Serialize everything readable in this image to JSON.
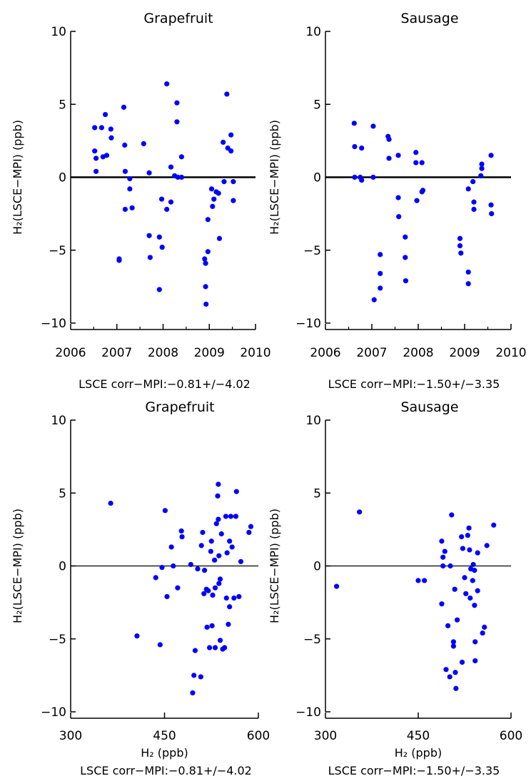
{
  "chart_data": [
    {
      "type": "scatter",
      "title": "Grapefruit",
      "xlabel": "",
      "ylabel": "H₂(LSCE−MPI) (ppb)",
      "xlim": [
        2006,
        2010
      ],
      "ylim": [
        -10,
        10
      ],
      "xticks": [
        2006,
        2007,
        2008,
        2009,
        2010
      ],
      "xtick_labels": [
        "2006",
        "2007",
        "2008",
        "2009",
        "2010"
      ],
      "yticks": [
        -10,
        -5,
        0,
        5,
        10
      ],
      "ytick_labels": [
        "−10",
        "−5",
        "0",
        "5",
        "10"
      ],
      "footer": "LSCE corr−MPI:−0.81+/−4.02",
      "color": "#0000ff",
      "reference_line": 0,
      "points": [
        [
          2006.52,
          3.4
        ],
        [
          2006.52,
          1.8
        ],
        [
          2006.55,
          1.3
        ],
        [
          2006.55,
          0.4
        ],
        [
          2006.67,
          3.4
        ],
        [
          2006.7,
          1.4
        ],
        [
          2006.75,
          4.3
        ],
        [
          2006.78,
          1.5
        ],
        [
          2006.87,
          3.3
        ],
        [
          2006.88,
          2.7
        ],
        [
          2007.05,
          -5.6
        ],
        [
          2007.05,
          -5.7
        ],
        [
          2007.15,
          4.8
        ],
        [
          2007.17,
          2.2
        ],
        [
          2007.18,
          0.4
        ],
        [
          2007.18,
          -2.2
        ],
        [
          2007.28,
          -0.8
        ],
        [
          2007.28,
          -0.1
        ],
        [
          2007.33,
          -2.1
        ],
        [
          2007.58,
          2.3
        ],
        [
          2007.7,
          0.3
        ],
        [
          2007.7,
          -4.0
        ],
        [
          2007.72,
          -5.5
        ],
        [
          2007.92,
          -4.1
        ],
        [
          2007.92,
          -7.7
        ],
        [
          2007.97,
          -1.5
        ],
        [
          2007.98,
          -4.8
        ],
        [
          2008.08,
          6.4
        ],
        [
          2008.08,
          -2.2
        ],
        [
          2008.17,
          0.7
        ],
        [
          2008.17,
          -1.7
        ],
        [
          2008.25,
          0.1
        ],
        [
          2008.3,
          5.1
        ],
        [
          2008.3,
          3.8
        ],
        [
          2008.32,
          0.0
        ],
        [
          2008.4,
          1.4
        ],
        [
          2008.4,
          0.0
        ],
        [
          2008.9,
          -5.6
        ],
        [
          2008.92,
          -5.9
        ],
        [
          2008.92,
          -7.5
        ],
        [
          2008.93,
          -8.7
        ],
        [
          2008.97,
          -5.1
        ],
        [
          2008.97,
          -2.9
        ],
        [
          2009.05,
          -0.8
        ],
        [
          2009.07,
          -2.0
        ],
        [
          2009.1,
          -1.5
        ],
        [
          2009.15,
          -1.0
        ],
        [
          2009.2,
          -1.1
        ],
        [
          2009.22,
          -4.2
        ],
        [
          2009.3,
          2.4
        ],
        [
          2009.32,
          -0.3
        ],
        [
          2009.38,
          5.7
        ],
        [
          2009.4,
          2.0
        ],
        [
          2009.47,
          2.9
        ],
        [
          2009.47,
          1.8
        ],
        [
          2009.52,
          -1.6
        ],
        [
          2009.52,
          -0.3
        ]
      ]
    },
    {
      "type": "scatter",
      "title": "Sausage",
      "xlabel": "",
      "ylabel": "H₂(LSCE−MPI) (ppb)",
      "xlim": [
        2006,
        2010
      ],
      "ylim": [
        -10,
        10
      ],
      "xticks": [
        2006,
        2007,
        2008,
        2009,
        2010
      ],
      "xtick_labels": [
        "2006",
        "2007",
        "2008",
        "2009",
        "2010"
      ],
      "yticks": [
        -10,
        -5,
        0,
        5,
        10
      ],
      "ytick_labels": [
        "−10",
        "−5",
        "0",
        "5",
        "10"
      ],
      "footer": "LSCE corr−MPI:−1.50+/−3.35",
      "color": "#0000ff",
      "reference_line": 0,
      "points": [
        [
          2006.62,
          3.7
        ],
        [
          2006.63,
          2.1
        ],
        [
          2006.63,
          0.0
        ],
        [
          2006.75,
          0.0
        ],
        [
          2006.78,
          2.0
        ],
        [
          2006.78,
          -0.2
        ],
        [
          2007.03,
          3.5
        ],
        [
          2007.03,
          0.0
        ],
        [
          2007.05,
          -8.4
        ],
        [
          2007.18,
          -5.3
        ],
        [
          2007.18,
          -6.6
        ],
        [
          2007.18,
          -7.6
        ],
        [
          2007.35,
          2.8
        ],
        [
          2007.37,
          2.6
        ],
        [
          2007.37,
          1.3
        ],
        [
          2007.57,
          1.5
        ],
        [
          2007.57,
          -1.4
        ],
        [
          2007.58,
          -2.7
        ],
        [
          2007.72,
          -4.1
        ],
        [
          2007.72,
          -5.5
        ],
        [
          2007.73,
          -7.1
        ],
        [
          2007.95,
          1.7
        ],
        [
          2007.95,
          1.0
        ],
        [
          2007.97,
          -1.6
        ],
        [
          2008.08,
          1.0
        ],
        [
          2008.08,
          -1.0
        ],
        [
          2008.1,
          -0.9
        ],
        [
          2008.9,
          -4.2
        ],
        [
          2008.9,
          -4.7
        ],
        [
          2008.92,
          -5.2
        ],
        [
          2009.08,
          -0.8
        ],
        [
          2009.08,
          -6.5
        ],
        [
          2009.08,
          -7.3
        ],
        [
          2009.18,
          -0.3
        ],
        [
          2009.2,
          -1.7
        ],
        [
          2009.2,
          -2.2
        ],
        [
          2009.35,
          0.1
        ],
        [
          2009.37,
          0.6
        ],
        [
          2009.37,
          0.9
        ],
        [
          2009.57,
          1.5
        ],
        [
          2009.57,
          -1.9
        ],
        [
          2009.58,
          -2.5
        ]
      ]
    },
    {
      "type": "scatter",
      "title": "Grapefruit",
      "xlabel": "H₂ (ppb)",
      "ylabel": "H₂(LSCE−MPI) (ppb)",
      "xlim": [
        300,
        600
      ],
      "ylim": [
        -10,
        10
      ],
      "xticks": [
        300,
        450,
        600
      ],
      "xtick_labels": [
        "300",
        "450",
        "600"
      ],
      "yticks": [
        -10,
        -5,
        0,
        5,
        10
      ],
      "ytick_labels": [
        "−10",
        "−5",
        "0",
        "5",
        "10"
      ],
      "footer": "LSCE corr−MPI:−0.81+/−4.02",
      "color": "#0000ff",
      "reference_line": 0,
      "points": [
        [
          364,
          4.3
        ],
        [
          406,
          -4.8
        ],
        [
          436,
          -0.8
        ],
        [
          443,
          -5.4
        ],
        [
          446,
          -0.1
        ],
        [
          451,
          3.8
        ],
        [
          454,
          -2.1
        ],
        [
          461,
          1.3
        ],
        [
          464,
          0.0
        ],
        [
          471,
          -1.5
        ],
        [
          477,
          2.4
        ],
        [
          478,
          2.0
        ],
        [
          492,
          0.1
        ],
        [
          495,
          -8.7
        ],
        [
          497,
          -7.5
        ],
        [
          499,
          -5.8
        ],
        [
          503,
          -0.2
        ],
        [
          508,
          -7.6
        ],
        [
          509,
          1.4
        ],
        [
          511,
          2.3
        ],
        [
          513,
          -1.9
        ],
        [
          514,
          -0.3
        ],
        [
          517,
          -1.6
        ],
        [
          518,
          -4.2
        ],
        [
          520,
          -1.7
        ],
        [
          522,
          -5.6
        ],
        [
          524,
          1.0
        ],
        [
          525,
          1.7
        ],
        [
          526,
          -4.1
        ],
        [
          527,
          -2.0
        ],
        [
          530,
          0.4
        ],
        [
          531,
          -1.5
        ],
        [
          531,
          -5.6
        ],
        [
          533,
          2.9
        ],
        [
          535,
          4.8
        ],
        [
          536,
          5.6
        ],
        [
          536,
          3.2
        ],
        [
          537,
          -1.2
        ],
        [
          537,
          0.7
        ],
        [
          539,
          -5.1
        ],
        [
          539,
          -0.9
        ],
        [
          541,
          2.2
        ],
        [
          543,
          -5.7
        ],
        [
          546,
          -5.6
        ],
        [
          548,
          3.4
        ],
        [
          549,
          -2.2
        ],
        [
          550,
          0.9
        ],
        [
          552,
          -4.0
        ],
        [
          554,
          1.7
        ],
        [
          554,
          -2.8
        ],
        [
          556,
          3.4
        ],
        [
          558,
          1.3
        ],
        [
          561,
          -2.2
        ],
        [
          564,
          3.4
        ],
        [
          565,
          5.1
        ],
        [
          569,
          -2.1
        ],
        [
          572,
          0.3
        ],
        [
          585,
          2.3
        ],
        [
          588,
          2.7
        ]
      ]
    },
    {
      "type": "scatter",
      "title": "Sausage",
      "xlabel": "H₂ (ppb)",
      "ylabel": "H₂(LSCE−MPI) (ppb)",
      "xlim": [
        300,
        600
      ],
      "ylim": [
        -10,
        10
      ],
      "xticks": [
        300,
        450,
        600
      ],
      "xtick_labels": [
        "300",
        "450",
        "600"
      ],
      "yticks": [
        -10,
        -5,
        0,
        5,
        10
      ],
      "ytick_labels": [
        "−10",
        "−5",
        "0",
        "5",
        "10"
      ],
      "footer": "LSCE corr−MPI:−1.50+/−3.35",
      "color": "#0000ff",
      "reference_line": 0,
      "points": [
        [
          318,
          -1.4
        ],
        [
          355,
          3.7
        ],
        [
          450,
          -1.0
        ],
        [
          460,
          -1.0
        ],
        [
          488,
          1.7
        ],
        [
          488,
          -2.6
        ],
        [
          490,
          0.0
        ],
        [
          490,
          0.6
        ],
        [
          493,
          1.0
        ],
        [
          495,
          -7.1
        ],
        [
          498,
          -4.1
        ],
        [
          501,
          -7.6
        ],
        [
          502,
          0.0
        ],
        [
          504,
          3.5
        ],
        [
          507,
          -5.5
        ],
        [
          507,
          -5.2
        ],
        [
          509,
          -1.6
        ],
        [
          510,
          -7.3
        ],
        [
          511,
          -8.4
        ],
        [
          513,
          -3.7
        ],
        [
          520,
          2.0
        ],
        [
          521,
          -6.6
        ],
        [
          522,
          1.2
        ],
        [
          525,
          -0.8
        ],
        [
          527,
          -1.9
        ],
        [
          530,
          2.1
        ],
        [
          532,
          2.6
        ],
        [
          533,
          1.1
        ],
        [
          534,
          -2.2
        ],
        [
          535,
          -0.2
        ],
        [
          538,
          -1.0
        ],
        [
          539,
          0.1
        ],
        [
          541,
          -0.3
        ],
        [
          541,
          -2.7
        ],
        [
          542,
          -6.5
        ],
        [
          542,
          -5.2
        ],
        [
          546,
          0.9
        ],
        [
          546,
          -1.7
        ],
        [
          554,
          -4.6
        ],
        [
          557,
          -4.2
        ],
        [
          561,
          1.4
        ],
        [
          572,
          2.8
        ]
      ]
    }
  ]
}
